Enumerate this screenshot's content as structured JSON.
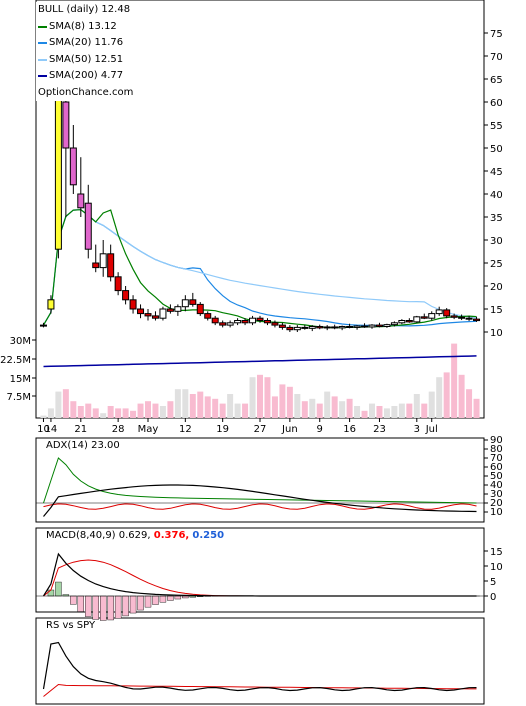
{
  "legend": {
    "title": "BULL (daily) 12.48",
    "watermark": "OptionChance.com",
    "items": [
      {
        "label": "SMA(8) 13.12",
        "color": "#008000"
      },
      {
        "label": "SMA(20) 11.76",
        "color": "#1e88e5"
      },
      {
        "label": "SMA(50) 12.51",
        "color": "#90caf9"
      },
      {
        "label": "SMA(200) 4.77",
        "color": "#0000a0"
      }
    ]
  },
  "panels": {
    "adx": {
      "label": "ADX(14) 23.00"
    },
    "macd": {
      "label": "MACD(8,40,9) 0.629,",
      "v2": "0.376,",
      "v3": "0.250",
      "color2": "#ff0000",
      "color3": "#1e5fd8"
    },
    "rs": {
      "label": "RS vs SPY"
    }
  },
  "chart_data": {
    "type": "candlestick",
    "price_ticks": [
      10,
      15,
      20,
      25,
      30,
      35,
      40,
      45,
      50,
      55,
      60,
      65,
      70,
      75
    ],
    "volume_ticks": [
      "7.5M",
      "15M",
      "22.5M",
      "30M"
    ],
    "x_labels": [
      "10",
      "14",
      "21",
      "28",
      "May",
      "12",
      "19",
      "27",
      "Jun",
      "9",
      "16",
      "23",
      "3",
      "Jul"
    ],
    "adx_ticks": [
      10,
      20,
      30,
      40,
      50,
      60,
      70,
      80,
      90
    ],
    "macd_ticks": [
      0,
      5,
      10,
      15
    ],
    "candles": [
      [
        11.5,
        12,
        11,
        11.5
      ],
      [
        15,
        18,
        14,
        17
      ],
      [
        28,
        65,
        26,
        62
      ],
      [
        60,
        63,
        35,
        50
      ],
      [
        50,
        55,
        40,
        42
      ],
      [
        40,
        48,
        35,
        37
      ],
      [
        38,
        42,
        26,
        28
      ],
      [
        25,
        29,
        23,
        24
      ],
      [
        24,
        30,
        22,
        27
      ],
      [
        27,
        29,
        21,
        22
      ],
      [
        22,
        23,
        18,
        19
      ],
      [
        19,
        20,
        16,
        17
      ],
      [
        17,
        18,
        14,
        15
      ],
      [
        15,
        16,
        13,
        14
      ],
      [
        14,
        15,
        12.5,
        13.5
      ],
      [
        13.5,
        14.5,
        12.5,
        13
      ],
      [
        13,
        15.5,
        12.5,
        15
      ],
      [
        15,
        16,
        14,
        14.5
      ],
      [
        14.5,
        16,
        13.5,
        15.5
      ],
      [
        15.5,
        18,
        14.5,
        17
      ],
      [
        17,
        18.5,
        15.5,
        16
      ],
      [
        16,
        16.5,
        13.5,
        14
      ],
      [
        14,
        14.5,
        12.5,
        13
      ],
      [
        13,
        13.5,
        11.5,
        12
      ],
      [
        12,
        12.5,
        11,
        11.5
      ],
      [
        11.5,
        12.5,
        11,
        12
      ],
      [
        12,
        13,
        11.5,
        12.5
      ],
      [
        12.5,
        13,
        11.5,
        12
      ],
      [
        12,
        13.5,
        11.5,
        13
      ],
      [
        13,
        13.5,
        12,
        12.5
      ],
      [
        12.5,
        13,
        11.5,
        12
      ],
      [
        12,
        12.5,
        11,
        11.5
      ],
      [
        11.5,
        12,
        10.5,
        11
      ],
      [
        11,
        11.5,
        10,
        10.5
      ],
      [
        10.5,
        11.5,
        10,
        11
      ],
      [
        11,
        11.5,
        10.5,
        10.8
      ],
      [
        10.8,
        11.5,
        10.2,
        11.2
      ],
      [
        11.2,
        11.6,
        10.6,
        10.9
      ],
      [
        10.9,
        11.5,
        10.4,
        11.1
      ],
      [
        11.1,
        11.6,
        10.6,
        10.9
      ],
      [
        10.9,
        11.4,
        10.4,
        11.2
      ],
      [
        11.2,
        11.8,
        10.8,
        11
      ],
      [
        11,
        11.5,
        10.5,
        11.3
      ],
      [
        11.3,
        11.9,
        10.9,
        11.1
      ],
      [
        11.1,
        11.7,
        10.7,
        11.5
      ],
      [
        11.5,
        12,
        11,
        11.2
      ],
      [
        11.2,
        11.8,
        10.9,
        11.6
      ],
      [
        11.6,
        12.3,
        11.2,
        12
      ],
      [
        12,
        12.8,
        11.7,
        12.5
      ],
      [
        12.5,
        13,
        12,
        12.2
      ],
      [
        12.2,
        13.5,
        12,
        13.3
      ],
      [
        13.3,
        14,
        12.8,
        13
      ],
      [
        13,
        14.5,
        12.5,
        14
      ],
      [
        14,
        15.5,
        13.5,
        14.8
      ],
      [
        14.8,
        15.2,
        13,
        13.5
      ],
      [
        13.5,
        14,
        12.8,
        13.2
      ],
      [
        13.2,
        13.8,
        12.6,
        13
      ],
      [
        13,
        13.5,
        12.4,
        12.8
      ],
      [
        12.8,
        13.3,
        12.2,
        12.48
      ]
    ],
    "volume": [
      1,
      4,
      11,
      12,
      7,
      5,
      6,
      4,
      2,
      5,
      4,
      4,
      3,
      6,
      7,
      6,
      5,
      7,
      12,
      12,
      10,
      11,
      9,
      8,
      6,
      10,
      6,
      6,
      17,
      18,
      17,
      9,
      14,
      13,
      10,
      7,
      8,
      6,
      11,
      9,
      7,
      8,
      5,
      3,
      6,
      5,
      4,
      5,
      6,
      6,
      10,
      6,
      11,
      17,
      19,
      31,
      18,
      12,
      8
    ],
    "volume_up_days_bar_color": "#e0e0e0",
    "volume_down_days_bar_color": "#f8bbd0"
  }
}
